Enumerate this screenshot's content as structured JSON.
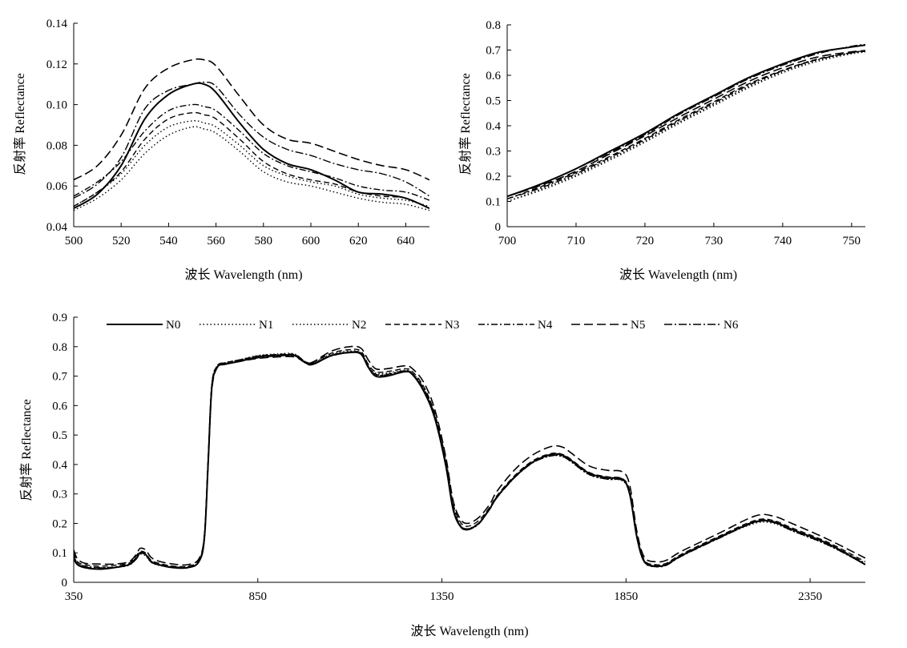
{
  "chart_data": [
    {
      "type": "line",
      "xlabel": "波长 Wavelength (nm)",
      "ylabel": "反射率 Reflectance",
      "xlim": [
        500,
        650
      ],
      "ylim": [
        0.04,
        0.14
      ],
      "xticks": [
        "500",
        "520",
        "540",
        "560",
        "580",
        "600",
        "620",
        "640"
      ],
      "yticks": [
        "0.04",
        "0.06",
        "0.08",
        "0.10",
        "0.12",
        "0.14"
      ],
      "x": [
        500,
        510,
        520,
        530,
        540,
        550,
        555,
        560,
        570,
        580,
        590,
        600,
        610,
        620,
        630,
        640,
        650
      ],
      "series": [
        {
          "name": "N0",
          "style": "solid",
          "values": [
            0.049,
            0.056,
            0.07,
            0.093,
            0.105,
            0.11,
            0.11,
            0.106,
            0.091,
            0.078,
            0.071,
            0.068,
            0.063,
            0.057,
            0.056,
            0.054,
            0.049
          ]
        },
        {
          "name": "N1",
          "style": "dotted",
          "values": [
            0.048,
            0.054,
            0.063,
            0.076,
            0.085,
            0.089,
            0.088,
            0.086,
            0.077,
            0.067,
            0.062,
            0.06,
            0.057,
            0.054,
            0.052,
            0.051,
            0.048
          ]
        },
        {
          "name": "N2",
          "style": "dotted",
          "values": [
            0.05,
            0.057,
            0.066,
            0.08,
            0.089,
            0.092,
            0.091,
            0.089,
            0.08,
            0.07,
            0.065,
            0.062,
            0.06,
            0.056,
            0.054,
            0.053,
            0.05
          ]
        },
        {
          "name": "N3",
          "style": "dashed",
          "values": [
            0.05,
            0.057,
            0.067,
            0.083,
            0.093,
            0.096,
            0.095,
            0.093,
            0.083,
            0.072,
            0.066,
            0.063,
            0.061,
            0.057,
            0.055,
            0.054,
            0.049
          ]
        },
        {
          "name": "N4",
          "style": "dashdot",
          "values": [
            0.055,
            0.062,
            0.072,
            0.087,
            0.097,
            0.1,
            0.099,
            0.097,
            0.087,
            0.076,
            0.07,
            0.067,
            0.064,
            0.06,
            0.058,
            0.057,
            0.053
          ]
        },
        {
          "name": "N5",
          "style": "longdash",
          "values": [
            0.063,
            0.07,
            0.085,
            0.108,
            0.118,
            0.122,
            0.122,
            0.119,
            0.104,
            0.09,
            0.083,
            0.081,
            0.077,
            0.073,
            0.07,
            0.068,
            0.063
          ]
        },
        {
          "name": "N6",
          "style": "dashdot2",
          "values": [
            0.054,
            0.061,
            0.074,
            0.098,
            0.107,
            0.11,
            0.111,
            0.109,
            0.095,
            0.084,
            0.078,
            0.075,
            0.071,
            0.068,
            0.066,
            0.062,
            0.055
          ]
        }
      ]
    },
    {
      "type": "line",
      "xlabel": "波长 Wavelength (nm)",
      "ylabel": "反射率 Reflectance",
      "xlim": [
        700,
        752
      ],
      "ylim": [
        0,
        0.8
      ],
      "xticks": [
        "700",
        "710",
        "720",
        "730",
        "740",
        "750"
      ],
      "yticks": [
        "0",
        "0.1",
        "0.2",
        "0.3",
        "0.4",
        "0.5",
        "0.6",
        "0.7",
        "0.8"
      ],
      "x": [
        700,
        705,
        710,
        715,
        720,
        725,
        730,
        735,
        740,
        745,
        750,
        752
      ],
      "series": [
        {
          "name": "N0",
          "style": "solid",
          "values": [
            0.12,
            0.17,
            0.23,
            0.3,
            0.37,
            0.45,
            0.52,
            0.59,
            0.645,
            0.69,
            0.712,
            0.72
          ]
        },
        {
          "name": "N1",
          "style": "dotted",
          "values": [
            0.1,
            0.145,
            0.2,
            0.265,
            0.335,
            0.41,
            0.48,
            0.55,
            0.61,
            0.655,
            0.685,
            0.692
          ]
        },
        {
          "name": "N2",
          "style": "dotted",
          "values": [
            0.1,
            0.15,
            0.205,
            0.27,
            0.34,
            0.415,
            0.485,
            0.555,
            0.615,
            0.66,
            0.688,
            0.695
          ]
        },
        {
          "name": "N3",
          "style": "dashed",
          "values": [
            0.11,
            0.16,
            0.215,
            0.28,
            0.35,
            0.425,
            0.495,
            0.565,
            0.62,
            0.664,
            0.69,
            0.697
          ]
        },
        {
          "name": "N4",
          "style": "dashdot",
          "values": [
            0.11,
            0.155,
            0.21,
            0.275,
            0.345,
            0.42,
            0.49,
            0.56,
            0.618,
            0.662,
            0.689,
            0.695
          ]
        },
        {
          "name": "N5",
          "style": "longdash",
          "values": [
            0.12,
            0.165,
            0.22,
            0.29,
            0.36,
            0.435,
            0.505,
            0.575,
            0.63,
            0.672,
            0.693,
            0.698
          ]
        },
        {
          "name": "N6",
          "style": "dashdot2",
          "values": [
            0.12,
            0.17,
            0.23,
            0.295,
            0.365,
            0.445,
            0.515,
            0.585,
            0.64,
            0.685,
            0.715,
            0.722
          ]
        }
      ]
    },
    {
      "type": "line",
      "xlabel": "波长 Wavelength (nm)",
      "ylabel": "反射率 Reflectance",
      "xlim": [
        350,
        2500
      ],
      "ylim": [
        0,
        0.9
      ],
      "xticks": [
        "350",
        "850",
        "1350",
        "1850",
        "2350"
      ],
      "yticks": [
        "0",
        "0.1",
        "0.2",
        "0.3",
        "0.4",
        "0.5",
        "0.6",
        "0.7",
        "0.8",
        "0.9"
      ],
      "legend": "top",
      "x": [
        350,
        360,
        380,
        420,
        460,
        500,
        520,
        530,
        545,
        560,
        580,
        620,
        660,
        690,
        705,
        715,
        725,
        740,
        760,
        800,
        850,
        900,
        950,
        980,
        1000,
        1050,
        1100,
        1130,
        1150,
        1170,
        1200,
        1250,
        1270,
        1300,
        1330,
        1360,
        1380,
        1400,
        1420,
        1450,
        1480,
        1500,
        1550,
        1600,
        1650,
        1680,
        1700,
        1750,
        1800,
        1840,
        1860,
        1880,
        1900,
        1930,
        1960,
        2000,
        2100,
        2200,
        2250,
        2300,
        2400,
        2500
      ],
      "series": [
        {
          "name": "N0",
          "style": "solid",
          "values": [
            0.08,
            0.06,
            0.05,
            0.045,
            0.05,
            0.06,
            0.08,
            0.1,
            0.095,
            0.07,
            0.06,
            0.05,
            0.05,
            0.07,
            0.15,
            0.4,
            0.66,
            0.73,
            0.74,
            0.75,
            0.765,
            0.77,
            0.77,
            0.745,
            0.74,
            0.77,
            0.78,
            0.775,
            0.73,
            0.7,
            0.7,
            0.715,
            0.705,
            0.65,
            0.56,
            0.4,
            0.25,
            0.19,
            0.18,
            0.2,
            0.25,
            0.29,
            0.36,
            0.41,
            0.435,
            0.43,
            0.415,
            0.37,
            0.355,
            0.35,
            0.3,
            0.15,
            0.07,
            0.055,
            0.06,
            0.09,
            0.15,
            0.205,
            0.205,
            0.18,
            0.13,
            0.06
          ]
        },
        {
          "name": "N1",
          "style": "dotted",
          "values": [
            0.08,
            0.06,
            0.05,
            0.045,
            0.05,
            0.058,
            0.08,
            0.095,
            0.09,
            0.068,
            0.058,
            0.05,
            0.05,
            0.07,
            0.16,
            0.42,
            0.67,
            0.735,
            0.745,
            0.755,
            0.77,
            0.775,
            0.775,
            0.745,
            0.745,
            0.775,
            0.785,
            0.78,
            0.735,
            0.71,
            0.71,
            0.72,
            0.71,
            0.66,
            0.57,
            0.41,
            0.26,
            0.195,
            0.18,
            0.2,
            0.25,
            0.29,
            0.36,
            0.41,
            0.43,
            0.425,
            0.41,
            0.365,
            0.35,
            0.345,
            0.3,
            0.15,
            0.07,
            0.055,
            0.06,
            0.09,
            0.15,
            0.2,
            0.2,
            0.175,
            0.125,
            0.06
          ]
        },
        {
          "name": "N2",
          "style": "dotted",
          "values": [
            0.09,
            0.065,
            0.055,
            0.05,
            0.052,
            0.06,
            0.082,
            0.1,
            0.095,
            0.07,
            0.06,
            0.052,
            0.05,
            0.07,
            0.15,
            0.41,
            0.67,
            0.735,
            0.745,
            0.755,
            0.768,
            0.772,
            0.772,
            0.748,
            0.745,
            0.772,
            0.782,
            0.778,
            0.732,
            0.705,
            0.705,
            0.718,
            0.708,
            0.655,
            0.565,
            0.405,
            0.255,
            0.19,
            0.18,
            0.2,
            0.25,
            0.29,
            0.36,
            0.41,
            0.432,
            0.428,
            0.412,
            0.368,
            0.352,
            0.348,
            0.3,
            0.15,
            0.07,
            0.055,
            0.06,
            0.09,
            0.15,
            0.205,
            0.205,
            0.178,
            0.128,
            0.062
          ]
        },
        {
          "name": "N3",
          "style": "dashed",
          "values": [
            0.1,
            0.07,
            0.06,
            0.055,
            0.058,
            0.065,
            0.09,
            0.105,
            0.1,
            0.075,
            0.065,
            0.055,
            0.055,
            0.075,
            0.16,
            0.42,
            0.67,
            0.735,
            0.745,
            0.755,
            0.768,
            0.773,
            0.773,
            0.748,
            0.748,
            0.778,
            0.79,
            0.785,
            0.74,
            0.715,
            0.715,
            0.725,
            0.715,
            0.665,
            0.575,
            0.42,
            0.27,
            0.205,
            0.19,
            0.21,
            0.255,
            0.295,
            0.365,
            0.415,
            0.438,
            0.433,
            0.418,
            0.373,
            0.358,
            0.352,
            0.31,
            0.16,
            0.075,
            0.06,
            0.065,
            0.095,
            0.155,
            0.21,
            0.21,
            0.185,
            0.135,
            0.07
          ]
        },
        {
          "name": "N4",
          "style": "dashdot",
          "values": [
            0.09,
            0.065,
            0.055,
            0.05,
            0.052,
            0.062,
            0.085,
            0.1,
            0.095,
            0.072,
            0.062,
            0.053,
            0.052,
            0.072,
            0.16,
            0.41,
            0.665,
            0.732,
            0.742,
            0.752,
            0.765,
            0.77,
            0.77,
            0.745,
            0.743,
            0.77,
            0.782,
            0.778,
            0.733,
            0.706,
            0.706,
            0.718,
            0.708,
            0.658,
            0.568,
            0.41,
            0.26,
            0.195,
            0.182,
            0.202,
            0.252,
            0.292,
            0.362,
            0.412,
            0.434,
            0.43,
            0.414,
            0.37,
            0.354,
            0.349,
            0.305,
            0.155,
            0.072,
            0.057,
            0.062,
            0.092,
            0.152,
            0.207,
            0.207,
            0.18,
            0.13,
            0.065
          ]
        },
        {
          "name": "N5",
          "style": "longdash",
          "values": [
            0.11,
            0.08,
            0.065,
            0.062,
            0.062,
            0.07,
            0.095,
            0.115,
            0.11,
            0.085,
            0.072,
            0.062,
            0.06,
            0.08,
            0.16,
            0.4,
            0.65,
            0.73,
            0.74,
            0.75,
            0.76,
            0.765,
            0.765,
            0.745,
            0.748,
            0.785,
            0.8,
            0.795,
            0.755,
            0.725,
            0.725,
            0.735,
            0.725,
            0.68,
            0.59,
            0.43,
            0.28,
            0.215,
            0.2,
            0.22,
            0.265,
            0.31,
            0.385,
            0.435,
            0.462,
            0.458,
            0.44,
            0.395,
            0.38,
            0.375,
            0.33,
            0.17,
            0.085,
            0.07,
            0.075,
            0.105,
            0.165,
            0.225,
            0.225,
            0.2,
            0.145,
            0.082
          ]
        },
        {
          "name": "N6",
          "style": "dashdot2",
          "values": [
            0.085,
            0.062,
            0.052,
            0.048,
            0.05,
            0.06,
            0.082,
            0.098,
            0.093,
            0.07,
            0.06,
            0.051,
            0.05,
            0.07,
            0.15,
            0.4,
            0.66,
            0.73,
            0.74,
            0.75,
            0.762,
            0.768,
            0.768,
            0.744,
            0.742,
            0.768,
            0.78,
            0.776,
            0.731,
            0.703,
            0.703,
            0.716,
            0.706,
            0.653,
            0.563,
            0.403,
            0.253,
            0.19,
            0.178,
            0.198,
            0.248,
            0.288,
            0.358,
            0.408,
            0.43,
            0.426,
            0.41,
            0.366,
            0.35,
            0.346,
            0.298,
            0.148,
            0.068,
            0.053,
            0.058,
            0.088,
            0.148,
            0.203,
            0.203,
            0.176,
            0.126,
            0.06
          ]
        }
      ]
    }
  ]
}
